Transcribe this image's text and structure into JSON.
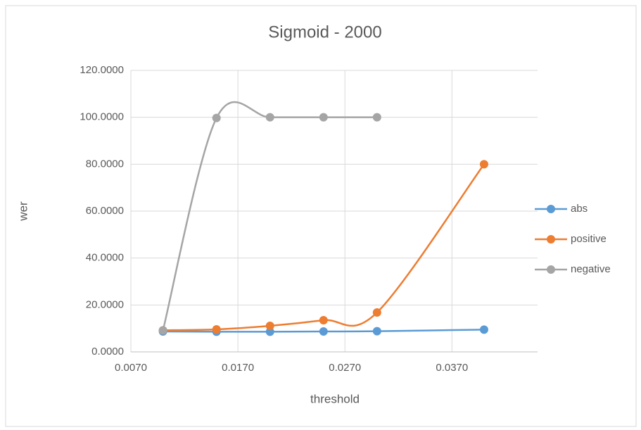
{
  "chart_data": {
    "type": "scatter-smooth",
    "title": "Sigmoid - 2000",
    "x_label": "threshold",
    "y_label": "wer",
    "x": [
      0.01,
      0.015,
      0.02,
      0.025,
      0.03,
      0.04
    ],
    "series": [
      {
        "name": "abs",
        "color": "#5b9bd5",
        "values": [
          8.7,
          8.6,
          8.6,
          8.7,
          8.8,
          9.5
        ]
      },
      {
        "name": "positive",
        "color": "#ed7d31",
        "values": [
          9.2,
          9.6,
          11.1,
          13.5,
          16.8,
          80.0
        ]
      },
      {
        "name": "negative",
        "color": "#a5a5a5",
        "values": [
          9.2,
          99.7,
          100.0,
          100.0,
          100.0,
          null
        ]
      }
    ],
    "xlim": [
      0.007,
      0.045
    ],
    "xticks": [
      {
        "value": 0.007,
        "label": "0.0070"
      },
      {
        "value": 0.017,
        "label": "0.0170"
      },
      {
        "value": 0.027,
        "label": "0.0270"
      },
      {
        "value": 0.037,
        "label": "0.0370"
      }
    ],
    "ylim": [
      0,
      120
    ],
    "yticks": [
      {
        "value": 0,
        "label": "0.0000"
      },
      {
        "value": 20,
        "label": "20.0000"
      },
      {
        "value": 40,
        "label": "40.0000"
      },
      {
        "value": 60,
        "label": "60.0000"
      },
      {
        "value": 80,
        "label": "80.0000"
      },
      {
        "value": 100,
        "label": "100.0000"
      },
      {
        "value": 120,
        "label": "120.0000"
      }
    ],
    "grid": true,
    "legend": "right"
  }
}
